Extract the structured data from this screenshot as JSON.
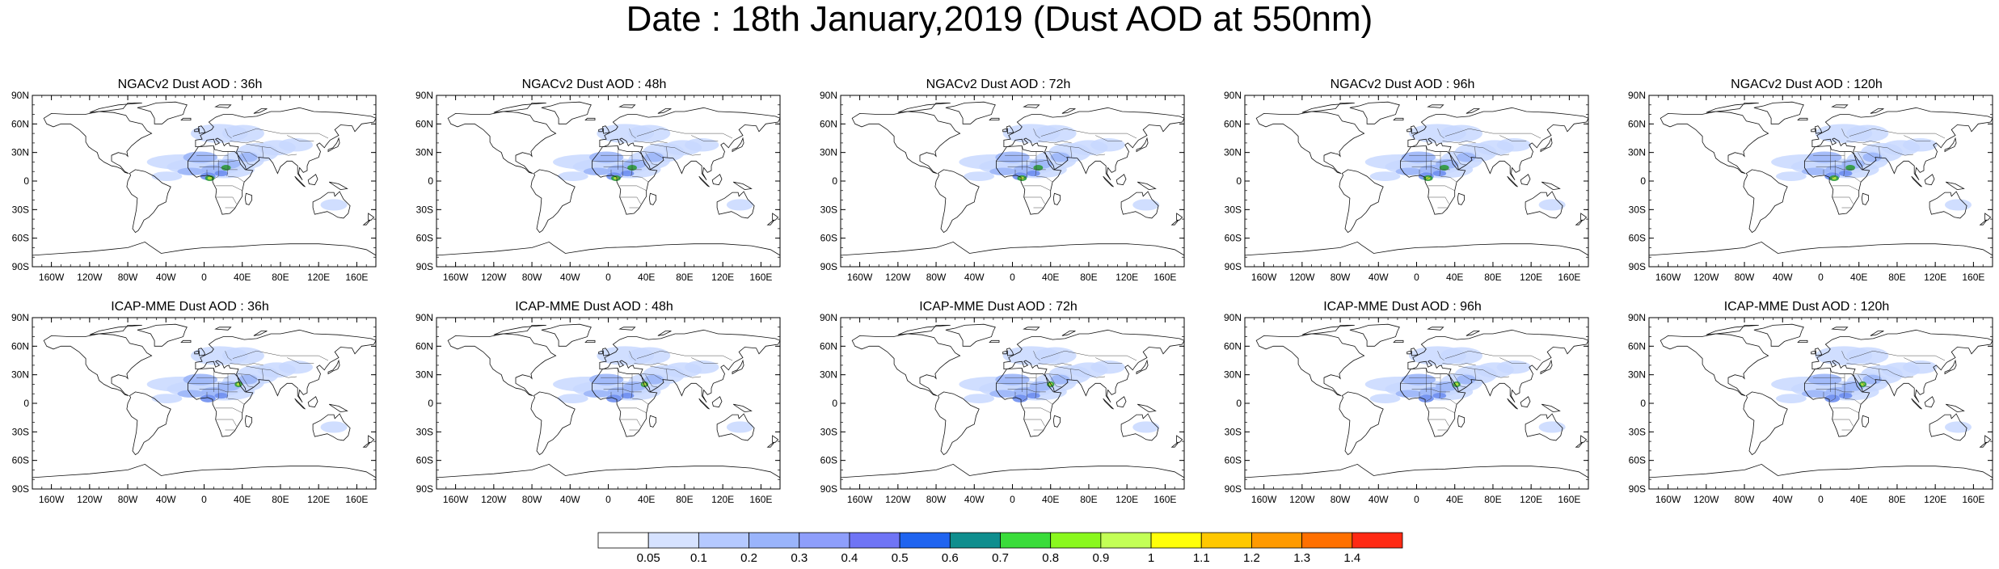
{
  "title": "Date : 18th January,2019 (Dust AOD at 550nm)",
  "map": {
    "lat_labels": [
      "90N",
      "60N",
      "30N",
      "0",
      "30S",
      "60S",
      "90S"
    ],
    "lon_labels": [
      "160W",
      "120W",
      "80W",
      "40W",
      "0",
      "40E",
      "80E",
      "120E",
      "160E"
    ],
    "lon_values": [
      -160,
      -120,
      -80,
      -40,
      0,
      40,
      80,
      120,
      160
    ]
  },
  "panels": [
    {
      "title": "NGACv2 Dust AOD : 36h",
      "model": "NGACv2",
      "lead": "36h"
    },
    {
      "title": "NGACv2 Dust AOD : 48h",
      "model": "NGACv2",
      "lead": "48h"
    },
    {
      "title": "NGACv2 Dust AOD : 72h",
      "model": "NGACv2",
      "lead": "72h"
    },
    {
      "title": "NGACv2 Dust AOD : 96h",
      "model": "NGACv2",
      "lead": "96h"
    },
    {
      "title": "NGACv2 Dust AOD : 120h",
      "model": "NGACv2",
      "lead": "120h"
    },
    {
      "title": "ICAP-MME Dust AOD : 36h",
      "model": "ICAP-MME",
      "lead": "36h"
    },
    {
      "title": "ICAP-MME Dust AOD : 48h",
      "model": "ICAP-MME",
      "lead": "48h"
    },
    {
      "title": "ICAP-MME Dust AOD : 72h",
      "model": "ICAP-MME",
      "lead": "72h"
    },
    {
      "title": "ICAP-MME Dust AOD : 96h",
      "model": "ICAP-MME",
      "lead": "96h"
    },
    {
      "title": "ICAP-MME Dust AOD : 120h",
      "model": "ICAP-MME",
      "lead": "120h"
    }
  ],
  "colorbar": {
    "labels": [
      "0.05",
      "0.1",
      "0.2",
      "0.3",
      "0.4",
      "0.5",
      "0.6",
      "0.7",
      "0.8",
      "0.9",
      "1",
      "1.1",
      "1.2",
      "1.3",
      "1.4"
    ],
    "colors": [
      "#ffffff",
      "#d6e2ff",
      "#b5c9ff",
      "#9ab4fb",
      "#8e9efb",
      "#6f74f5",
      "#1f64f0",
      "#0f8e8e",
      "#3adc3a",
      "#8af81e",
      "#c3ff56",
      "#ffff0a",
      "#ffc800",
      "#ff9a00",
      "#ff7000",
      "#ff2a14"
    ]
  },
  "dust_colors": {
    "light": "#c8d8ff",
    "medium": "#9cb6f8",
    "strong": "#6f8ff0",
    "peak1": "#2f9a3a",
    "peak2": "#b8e83a",
    "peak3": "#fff200"
  }
}
